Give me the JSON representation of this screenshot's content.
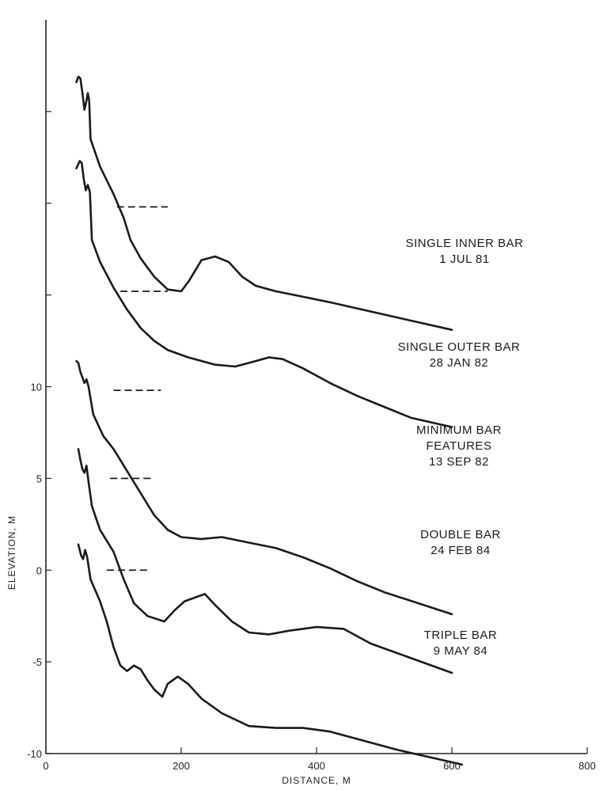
{
  "chart_data": {
    "type": "line",
    "xlabel": "DISTANCE, M",
    "ylabel": "ELEVATION, M",
    "xlim": [
      0,
      800
    ],
    "ylim": [
      -10,
      30
    ],
    "x_ticks": [
      0,
      200,
      400,
      600,
      800
    ],
    "y_ticks": [
      -10,
      -5,
      0,
      5,
      10,
      15,
      20,
      25
    ],
    "y_tick_labels": [
      {
        "value": -10,
        "label": "-10"
      },
      {
        "value": -5,
        "label": "-5"
      },
      {
        "value": 0,
        "label": "0"
      },
      {
        "value": 5,
        "label": "5"
      },
      {
        "value": 10,
        "label": "10"
      },
      {
        "value": 15,
        "label": ""
      },
      {
        "value": 20,
        "label": ""
      },
      {
        "value": 25,
        "label": ""
      }
    ],
    "grid": false,
    "series": [
      {
        "name": "SINGLE INNER BAR 1 JUL 81",
        "annotation": [
          "SINGLE INNER BAR",
          "1 JUL 81"
        ],
        "points": [
          [
            45,
            26.6
          ],
          [
            48,
            26.9
          ],
          [
            51,
            26.8
          ],
          [
            54,
            26
          ],
          [
            57,
            25.1
          ],
          [
            60,
            25.6
          ],
          [
            62,
            26
          ],
          [
            64,
            25.6
          ],
          [
            66,
            23.5
          ],
          [
            80,
            22
          ],
          [
            100,
            20.5
          ],
          [
            115,
            19.2
          ],
          [
            125,
            18
          ],
          [
            140,
            17
          ],
          [
            160,
            16
          ],
          [
            180,
            15.3
          ],
          [
            200,
            15.2
          ],
          [
            212,
            15.8
          ],
          [
            230,
            16.9
          ],
          [
            250,
            17.1
          ],
          [
            270,
            16.8
          ],
          [
            290,
            16
          ],
          [
            310,
            15.5
          ],
          [
            340,
            15.2
          ],
          [
            380,
            14.9
          ],
          [
            420,
            14.6
          ],
          [
            480,
            14.1
          ],
          [
            540,
            13.6
          ],
          [
            600,
            13.1
          ]
        ],
        "mean_water_level": {
          "y": 19.8,
          "x_start": 105,
          "x_end": 180
        }
      },
      {
        "name": "SINGLE OUTER BAR 28 JAN 82",
        "annotation": [
          "SINGLE OUTER BAR",
          "28 JAN 82"
        ],
        "points": [
          [
            45,
            21.9
          ],
          [
            50,
            22.3
          ],
          [
            53,
            22.2
          ],
          [
            56,
            21.3
          ],
          [
            59,
            20.7
          ],
          [
            62,
            21
          ],
          [
            65,
            20.6
          ],
          [
            68,
            18
          ],
          [
            80,
            16.8
          ],
          [
            100,
            15.4
          ],
          [
            120,
            14.2
          ],
          [
            140,
            13.2
          ],
          [
            160,
            12.5
          ],
          [
            180,
            12
          ],
          [
            210,
            11.6
          ],
          [
            250,
            11.2
          ],
          [
            280,
            11.1
          ],
          [
            310,
            11.4
          ],
          [
            330,
            11.6
          ],
          [
            350,
            11.5
          ],
          [
            380,
            11
          ],
          [
            420,
            10.2
          ],
          [
            460,
            9.5
          ],
          [
            500,
            8.9
          ],
          [
            540,
            8.3
          ],
          [
            600,
            7.8
          ]
        ],
        "mean_water_level": {
          "y": 15.2,
          "x_start": 110,
          "x_end": 180
        }
      },
      {
        "name": "MINIMUM BAR FEATURES 13 SEP 82",
        "annotation": [
          "MINIMUM BAR",
          "FEATURES",
          "13 SEP 82"
        ],
        "points": [
          [
            45,
            11.4
          ],
          [
            48,
            11.3
          ],
          [
            51,
            10.8
          ],
          [
            54,
            10.5
          ],
          [
            57,
            10.2
          ],
          [
            60,
            10.4
          ],
          [
            63,
            10
          ],
          [
            70,
            8.5
          ],
          [
            85,
            7.3
          ],
          [
            100,
            6.6
          ],
          [
            120,
            5.4
          ],
          [
            140,
            4.2
          ],
          [
            160,
            3
          ],
          [
            180,
            2.2
          ],
          [
            200,
            1.8
          ],
          [
            230,
            1.7
          ],
          [
            260,
            1.8
          ],
          [
            300,
            1.5
          ],
          [
            340,
            1.2
          ],
          [
            380,
            0.7
          ],
          [
            420,
            0.1
          ],
          [
            460,
            -0.6
          ],
          [
            500,
            -1.2
          ],
          [
            550,
            -1.8
          ],
          [
            600,
            -2.4
          ]
        ],
        "mean_water_level": {
          "y": 9.8,
          "x_start": 100,
          "x_end": 170
        }
      },
      {
        "name": "DOUBLE BAR 24 FEB 84",
        "annotation": [
          "DOUBLE BAR",
          "24 FEB 84"
        ],
        "points": [
          [
            48,
            6.6
          ],
          [
            51,
            6
          ],
          [
            54,
            5.5
          ],
          [
            57,
            5.3
          ],
          [
            60,
            5.7
          ],
          [
            63,
            4.8
          ],
          [
            68,
            3.5
          ],
          [
            80,
            2.2
          ],
          [
            100,
            1
          ],
          [
            115,
            -0.5
          ],
          [
            130,
            -1.8
          ],
          [
            150,
            -2.5
          ],
          [
            175,
            -2.8
          ],
          [
            190,
            -2.2
          ],
          [
            205,
            -1.7
          ],
          [
            220,
            -1.5
          ],
          [
            235,
            -1.3
          ],
          [
            250,
            -1.9
          ],
          [
            275,
            -2.8
          ],
          [
            300,
            -3.4
          ],
          [
            330,
            -3.5
          ],
          [
            360,
            -3.3
          ],
          [
            400,
            -3.1
          ],
          [
            440,
            -3.2
          ],
          [
            480,
            -4.0
          ],
          [
            540,
            -4.8
          ],
          [
            600,
            -5.6
          ]
        ],
        "mean_water_level": {
          "y": 5.0,
          "x_start": 95,
          "x_end": 160
        }
      },
      {
        "name": "TRIPLE BAR 9 MAY 84",
        "annotation": [
          "TRIPLE BAR",
          "9 MAY 84"
        ],
        "points": [
          [
            48,
            1.4
          ],
          [
            52,
            0.8
          ],
          [
            55,
            0.6
          ],
          [
            58,
            1.1
          ],
          [
            61,
            0.7
          ],
          [
            66,
            -0.5
          ],
          [
            80,
            -1.7
          ],
          [
            90,
            -2.8
          ],
          [
            100,
            -4.2
          ],
          [
            110,
            -5.2
          ],
          [
            120,
            -5.5
          ],
          [
            130,
            -5.2
          ],
          [
            140,
            -5.4
          ],
          [
            150,
            -6
          ],
          [
            160,
            -6.5
          ],
          [
            172,
            -6.9
          ],
          [
            180,
            -6.2
          ],
          [
            195,
            -5.8
          ],
          [
            210,
            -6.2
          ],
          [
            230,
            -7
          ],
          [
            260,
            -7.8
          ],
          [
            300,
            -8.5
          ],
          [
            340,
            -8.6
          ],
          [
            380,
            -8.6
          ],
          [
            420,
            -8.8
          ],
          [
            460,
            -9.2
          ],
          [
            520,
            -9.8
          ],
          [
            580,
            -10.3
          ],
          [
            615,
            -10.6
          ]
        ],
        "mean_water_level": {
          "y": 0.0,
          "x_start": 90,
          "x_end": 155
        }
      }
    ]
  }
}
